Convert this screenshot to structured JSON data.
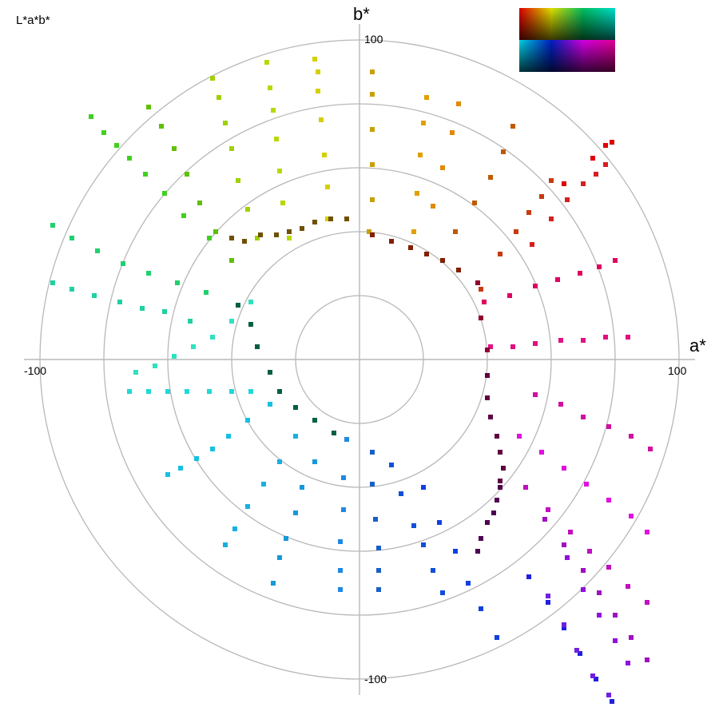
{
  "chart_data": {
    "type": "scatter",
    "title": "L*a*b*",
    "xlabel": "a*",
    "ylabel": "b*",
    "xlim": [
      -105,
      105
    ],
    "ylim": [
      -105,
      105
    ],
    "grid": "polar",
    "rings": [
      20,
      40,
      60,
      80,
      100
    ],
    "ticks": {
      "x_min": "-100",
      "x_max": "100",
      "y_max": "100",
      "y_min": "-100"
    },
    "legend": "color swatch strip at top-right",
    "series": [
      {
        "hue": 0,
        "color": "#e00000",
        "points": [
          [
            64,
            55
          ],
          [
            73,
            63
          ],
          [
            77,
            67
          ],
          [
            79,
            68
          ]
        ]
      },
      {
        "hue": 1,
        "color": "#d62020",
        "points": [
          [
            54,
            36
          ],
          [
            60,
            44
          ],
          [
            65,
            50
          ],
          [
            70,
            55
          ],
          [
            74,
            58
          ],
          [
            77,
            61
          ]
        ]
      },
      {
        "hue": 2,
        "color": "#c83a10",
        "points": [
          [
            38,
            22
          ],
          [
            44,
            33
          ],
          [
            49,
            40
          ],
          [
            53,
            46
          ],
          [
            57,
            51
          ],
          [
            60,
            56
          ]
        ]
      },
      {
        "hue": 3,
        "color": "#c05a00",
        "points": [
          [
            30,
            40
          ],
          [
            36,
            49
          ],
          [
            41,
            57
          ],
          [
            45,
            65
          ],
          [
            48,
            73
          ]
        ]
      },
      {
        "hue": 4,
        "color": "#e08a00",
        "points": [
          [
            23,
            48
          ],
          [
            26,
            60
          ],
          [
            29,
            71
          ],
          [
            31,
            80
          ]
        ]
      },
      {
        "hue": 5,
        "color": "#e0a000",
        "points": [
          [
            17,
            40
          ],
          [
            18,
            52
          ],
          [
            19,
            64
          ],
          [
            20,
            74
          ],
          [
            21,
            82
          ]
        ]
      },
      {
        "hue": 6,
        "color": "#c8a000",
        "points": [
          [
            3,
            40
          ],
          [
            4,
            50
          ],
          [
            4,
            61
          ],
          [
            4,
            72
          ],
          [
            4,
            83
          ],
          [
            4,
            90
          ]
        ]
      },
      {
        "hue": 7,
        "color": "#d4d000",
        "points": [
          [
            -10,
            44
          ],
          [
            -10,
            54
          ],
          [
            -11,
            64
          ],
          [
            -12,
            75
          ],
          [
            -13,
            84
          ],
          [
            -13,
            90
          ],
          [
            -14,
            94
          ]
        ]
      },
      {
        "hue": 8,
        "color": "#b8d800",
        "points": [
          [
            -22,
            38
          ],
          [
            -24,
            49
          ],
          [
            -25,
            59
          ],
          [
            -26,
            69
          ],
          [
            -27,
            78
          ],
          [
            -28,
            85
          ],
          [
            -29,
            93
          ]
        ]
      },
      {
        "hue": 9,
        "color": "#a0d000",
        "points": [
          [
            -32,
            38
          ],
          [
            -35,
            47
          ],
          [
            -38,
            56
          ],
          [
            -40,
            66
          ],
          [
            -42,
            74
          ],
          [
            -44,
            82
          ],
          [
            -46,
            88
          ]
        ]
      },
      {
        "hue": 10,
        "color": "#60c000",
        "points": [
          [
            -40,
            31
          ],
          [
            -45,
            40
          ],
          [
            -50,
            49
          ],
          [
            -54,
            58
          ],
          [
            -58,
            66
          ],
          [
            -62,
            73
          ],
          [
            -66,
            79
          ]
        ]
      },
      {
        "hue": 11,
        "color": "#40d020",
        "points": [
          [
            -47,
            38
          ],
          [
            -55,
            45
          ],
          [
            -61,
            52
          ],
          [
            -67,
            58
          ],
          [
            -72,
            63
          ],
          [
            -76,
            67
          ],
          [
            -80,
            71
          ],
          [
            -84,
            76
          ]
        ]
      },
      {
        "hue": 12,
        "color": "#20d070",
        "points": [
          [
            -48,
            21
          ],
          [
            -57,
            24
          ],
          [
            -66,
            27
          ],
          [
            -74,
            30
          ],
          [
            -82,
            34
          ],
          [
            -90,
            38
          ],
          [
            -96,
            42
          ]
        ]
      },
      {
        "hue": 13,
        "color": "#20d0a0",
        "points": [
          [
            -53,
            12
          ],
          [
            -61,
            15
          ],
          [
            -68,
            16
          ],
          [
            -75,
            18
          ],
          [
            -83,
            20
          ],
          [
            -90,
            22
          ],
          [
            -96,
            24
          ]
        ]
      },
      {
        "hue": 14,
        "color": "#30e0c0",
        "points": [
          [
            -34,
            18
          ],
          [
            -40,
            12
          ],
          [
            -46,
            7
          ],
          [
            -52,
            4
          ],
          [
            -58,
            1
          ],
          [
            -64,
            -2
          ],
          [
            -70,
            -4
          ]
        ]
      },
      {
        "hue": 15,
        "color": "#20d8d8",
        "points": [
          [
            -34,
            -10
          ],
          [
            -40,
            -10
          ],
          [
            -47,
            -10
          ],
          [
            -54,
            -10
          ],
          [
            -60,
            -10
          ],
          [
            -66,
            -10
          ],
          [
            -72,
            -10
          ]
        ]
      },
      {
        "hue": 16,
        "color": "#18c0e0",
        "points": [
          [
            -28,
            -14
          ],
          [
            -35,
            -19
          ],
          [
            -41,
            -24
          ],
          [
            -46,
            -28
          ],
          [
            -51,
            -31
          ],
          [
            -56,
            -34
          ],
          [
            -60,
            -36
          ]
        ]
      },
      {
        "hue": 17,
        "color": "#18b0e0",
        "points": [
          [
            -20,
            -24
          ],
          [
            -25,
            -32
          ],
          [
            -30,
            -39
          ],
          [
            -35,
            -46
          ],
          [
            -39,
            -53
          ],
          [
            -42,
            -58
          ]
        ]
      },
      {
        "hue": 18,
        "color": "#1898d8",
        "points": [
          [
            -14,
            -32
          ],
          [
            -18,
            -40
          ],
          [
            -20,
            -48
          ],
          [
            -23,
            -56
          ],
          [
            -25,
            -62
          ],
          [
            -27,
            -70
          ]
        ]
      },
      {
        "hue": 19,
        "color": "#2088e0",
        "points": [
          [
            -4,
            -25
          ],
          [
            -5,
            -37
          ],
          [
            -5,
            -47
          ],
          [
            -6,
            -57
          ],
          [
            -6,
            -66
          ],
          [
            -6,
            -72
          ]
        ]
      },
      {
        "hue": 20,
        "color": "#1860c8",
        "points": [
          [
            4,
            -29
          ],
          [
            4,
            -39
          ],
          [
            5,
            -50
          ],
          [
            6,
            -59
          ],
          [
            6,
            -66
          ],
          [
            6,
            -72
          ]
        ]
      },
      {
        "hue": 21,
        "color": "#1050d8",
        "points": [
          [
            10,
            -33
          ],
          [
            13,
            -42
          ],
          [
            17,
            -52
          ],
          [
            20,
            -58
          ],
          [
            23,
            -66
          ],
          [
            26,
            -73
          ]
        ]
      },
      {
        "hue": 22,
        "color": "#1040e0",
        "points": [
          [
            20,
            -40
          ],
          [
            25,
            -51
          ],
          [
            30,
            -60
          ],
          [
            34,
            -70
          ],
          [
            38,
            -78
          ],
          [
            43,
            -87
          ]
        ]
      },
      {
        "hue": 23,
        "color": "#2020e0",
        "points": [
          [
            53,
            -68
          ],
          [
            59,
            -76
          ],
          [
            64,
            -84
          ],
          [
            69,
            -92
          ],
          [
            74,
            -100
          ],
          [
            79,
            -107
          ]
        ]
      },
      {
        "hue": 24,
        "color": "#7020e0",
        "points": [
          [
            59,
            -74
          ],
          [
            64,
            -83
          ],
          [
            68,
            -91
          ],
          [
            73,
            -99
          ],
          [
            78,
            -105
          ]
        ]
      },
      {
        "hue": 25,
        "color": "#9010e0",
        "points": [
          [
            65,
            -62
          ],
          [
            70,
            -72
          ],
          [
            75,
            -80
          ],
          [
            80,
            -88
          ],
          [
            84,
            -95
          ]
        ]
      },
      {
        "hue": 26,
        "color": "#a010c0",
        "points": [
          [
            58,
            -50
          ],
          [
            64,
            -58
          ],
          [
            70,
            -66
          ],
          [
            75,
            -73
          ],
          [
            80,
            -80
          ],
          [
            85,
            -87
          ],
          [
            90,
            -94
          ]
        ]
      },
      {
        "hue": 27,
        "color": "#c010c0",
        "points": [
          [
            52,
            -40
          ],
          [
            59,
            -47
          ],
          [
            66,
            -54
          ],
          [
            72,
            -60
          ],
          [
            78,
            -65
          ],
          [
            84,
            -71
          ],
          [
            90,
            -76
          ]
        ]
      },
      {
        "hue": 28,
        "color": "#e010e0",
        "points": [
          [
            50,
            -24
          ],
          [
            57,
            -29
          ],
          [
            64,
            -34
          ],
          [
            71,
            -39
          ],
          [
            78,
            -44
          ],
          [
            85,
            -49
          ],
          [
            90,
            -54
          ]
        ]
      },
      {
        "hue": 29,
        "color": "#d010a0",
        "points": [
          [
            55,
            -11
          ],
          [
            63,
            -14
          ],
          [
            70,
            -18
          ],
          [
            78,
            -21
          ],
          [
            85,
            -24
          ],
          [
            91,
            -28
          ]
        ]
      },
      {
        "hue": 30,
        "color": "#e01080",
        "points": [
          [
            41,
            4
          ],
          [
            48,
            4
          ],
          [
            55,
            5
          ],
          [
            63,
            6
          ],
          [
            70,
            6
          ],
          [
            77,
            7
          ],
          [
            84,
            7
          ]
        ]
      },
      {
        "hue": 31,
        "color": "#e00060",
        "points": [
          [
            39,
            18
          ],
          [
            47,
            20
          ],
          [
            55,
            23
          ],
          [
            62,
            25
          ],
          [
            69,
            27
          ],
          [
            75,
            29
          ],
          [
            80,
            31
          ]
        ]
      },
      {
        "hue": 32,
        "color": "#600040",
        "points": [
          [
            40,
            -5
          ],
          [
            40,
            -12
          ],
          [
            41,
            -18
          ],
          [
            43,
            -24
          ],
          [
            44,
            -29
          ],
          [
            45,
            -34
          ],
          [
            44,
            -38
          ]
        ]
      },
      {
        "hue": 33,
        "color": "#500050",
        "points": [
          [
            44,
            -40
          ],
          [
            43,
            -44
          ],
          [
            42,
            -48
          ],
          [
            40,
            -51
          ],
          [
            38,
            -56
          ],
          [
            37,
            -60
          ]
        ]
      },
      {
        "hue": 34,
        "color": "#900030",
        "points": [
          [
            37,
            24
          ],
          [
            38,
            13
          ],
          [
            40,
            3
          ]
        ]
      },
      {
        "hue": 35,
        "color": "#802000",
        "points": [
          [
            4,
            39
          ],
          [
            10,
            37
          ],
          [
            16,
            35
          ],
          [
            21,
            33
          ],
          [
            26,
            31
          ],
          [
            31,
            28
          ]
        ]
      },
      {
        "hue": 36,
        "color": "#705000",
        "points": [
          [
            -4,
            44
          ],
          [
            -9,
            44
          ],
          [
            -14,
            43
          ],
          [
            -18,
            41
          ],
          [
            -22,
            40
          ],
          [
            -26,
            39
          ],
          [
            -31,
            39
          ],
          [
            -36,
            37
          ],
          [
            -40,
            38
          ]
        ]
      },
      {
        "hue": 37,
        "color": "#006040",
        "points": [
          [
            -38,
            17
          ],
          [
            -34,
            11
          ],
          [
            -32,
            4
          ],
          [
            -28,
            -4
          ],
          [
            -25,
            -10
          ],
          [
            -20,
            -15
          ],
          [
            -14,
            -19
          ],
          [
            -8,
            -23
          ]
        ]
      }
    ]
  },
  "swatch": {
    "rows": [
      [
        "#e00000",
        "#e0e000",
        "#00c060",
        "#00e0d0"
      ],
      [
        "#00d0e0",
        "#0020c0",
        "#d000e0",
        "#e00090"
      ]
    ]
  }
}
